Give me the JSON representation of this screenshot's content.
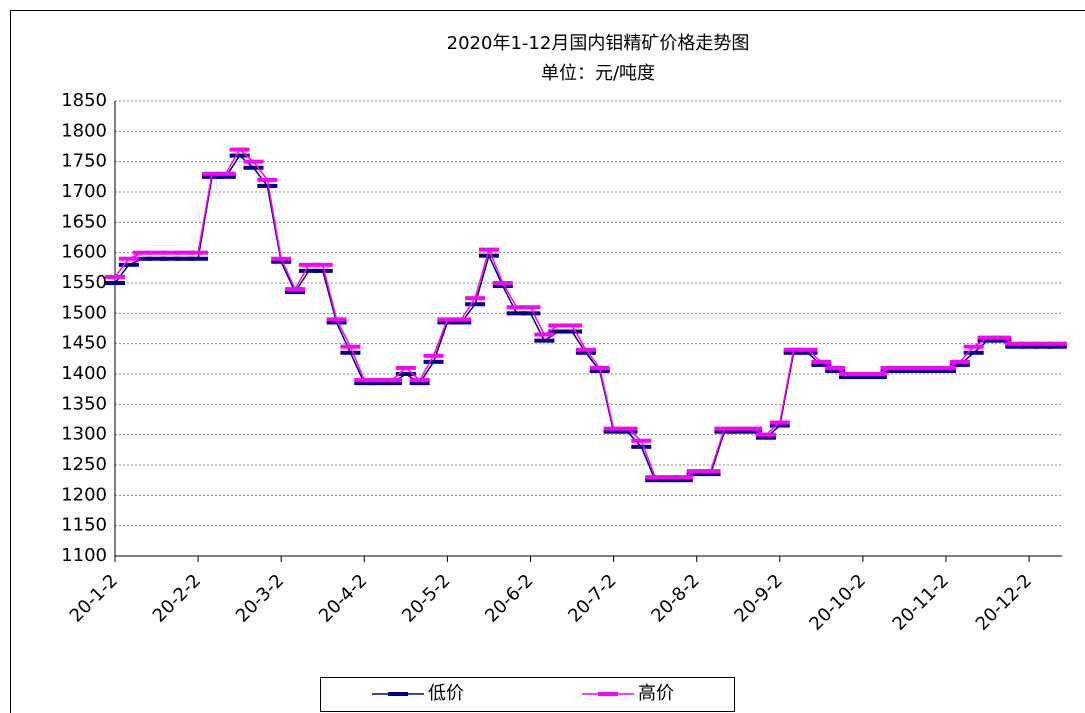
{
  "chart_data": {
    "type": "line",
    "title": "2020年1-12月国内钼精矿价格走势图",
    "subtitle": "单位：元/吨度",
    "categories": [
      "20-1-2",
      null,
      null,
      null,
      null,
      null,
      "20-2-2",
      null,
      null,
      null,
      null,
      null,
      "20-3-2",
      null,
      null,
      null,
      null,
      null,
      "20-4-2",
      null,
      null,
      null,
      null,
      null,
      "20-5-2",
      null,
      null,
      null,
      null,
      null,
      "20-6-2",
      null,
      null,
      null,
      null,
      null,
      "20-7-2",
      null,
      null,
      null,
      null,
      null,
      "20-8-2",
      null,
      null,
      null,
      null,
      null,
      "20-9-2",
      null,
      null,
      null,
      null,
      null,
      "20-10-2",
      null,
      null,
      null,
      null,
      null,
      "20-11-2",
      null,
      null,
      null,
      null,
      null,
      "20-12-2",
      null,
      null
    ],
    "series": [
      {
        "name": "低价",
        "color": "#000080",
        "values": [
          1550,
          1580,
          1590,
          1590,
          1590,
          1590,
          1590,
          1725,
          1725,
          1760,
          1740,
          1710,
          1585,
          1535,
          1570,
          1570,
          1485,
          1435,
          1385,
          1385,
          1385,
          1400,
          1385,
          1420,
          1485,
          1485,
          1515,
          1595,
          1545,
          1500,
          1500,
          1455,
          1470,
          1470,
          1435,
          1405,
          1305,
          1305,
          1280,
          1225,
          1225,
          1225,
          1235,
          1235,
          1305,
          1305,
          1305,
          1295,
          1315,
          1435,
          1435,
          1415,
          1405,
          1395,
          1395,
          1395,
          1405,
          1405,
          1405,
          1405,
          1405,
          1415,
          1435,
          1455,
          1455,
          1445,
          1445,
          1445,
          1445
        ]
      },
      {
        "name": "高价",
        "color": "#ff00ff",
        "values": [
          1560,
          1590,
          1600,
          1600,
          1600,
          1600,
          1600,
          1730,
          1730,
          1770,
          1750,
          1720,
          1590,
          1540,
          1580,
          1580,
          1490,
          1445,
          1390,
          1390,
          1390,
          1410,
          1390,
          1430,
          1490,
          1490,
          1525,
          1605,
          1550,
          1510,
          1510,
          1465,
          1480,
          1480,
          1440,
          1410,
          1310,
          1310,
          1290,
          1230,
          1230,
          1230,
          1240,
          1240,
          1310,
          1310,
          1310,
          1300,
          1320,
          1440,
          1440,
          1420,
          1410,
          1400,
          1400,
          1400,
          1410,
          1410,
          1410,
          1410,
          1410,
          1420,
          1445,
          1460,
          1460,
          1450,
          1450,
          1450,
          1450
        ]
      }
    ],
    "ylim": [
      1100,
      1850
    ],
    "yticks": [
      1100,
      1150,
      1200,
      1250,
      1300,
      1350,
      1400,
      1450,
      1500,
      1550,
      1600,
      1650,
      1700,
      1750,
      1800,
      1850
    ],
    "grid": true,
    "legend": "bottom"
  }
}
